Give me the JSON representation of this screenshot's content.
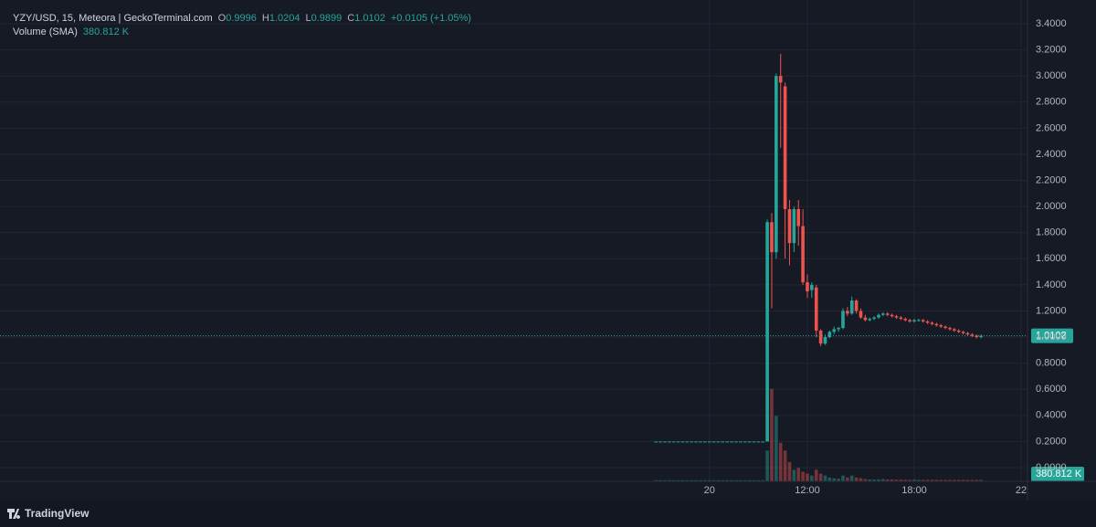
{
  "chart_data": {
    "type": "candlestick",
    "title": "YZY/USD, 15, Meteora | GeckoTerminal.com",
    "ohlc_labels": [
      "O",
      "H",
      "L",
      "C"
    ],
    "change_label": "+0.0105 (+1.05%)",
    "volume_title": "Volume (SMA)",
    "volume_label": "380.812 K",
    "brand": "TradingView",
    "up_color": "#26a69a",
    "down_color": "#ef5350",
    "grid": true,
    "x": [
      3.5,
      3.75,
      4,
      4.25,
      4.5,
      4.75,
      5,
      5.25,
      5.5,
      5.75,
      6,
      6.25,
      6.5,
      6.75,
      7,
      7.25,
      7.5,
      7.75,
      8,
      8.25,
      8.5,
      8.75,
      9,
      9.25,
      9.5,
      9.75,
      10,
      10.25,
      10.5,
      10.75,
      11,
      11.25,
      11.5,
      11.75,
      12,
      12.25,
      12.5,
      12.75,
      13,
      13.25,
      13.5,
      13.75,
      14,
      14.25,
      14.5,
      14.75,
      15,
      15.25,
      15.5,
      15.75,
      16,
      16.25,
      16.5,
      16.75,
      17,
      17.25,
      17.5,
      17.75,
      18,
      18.25,
      18.5,
      18.75,
      19,
      19.25,
      19.5,
      19.75,
      20,
      20.25,
      20.5,
      20.75,
      21,
      21.25,
      21.5,
      21.75
    ],
    "open": [
      0.2,
      0.2,
      0.2,
      0.2,
      0.2,
      0.2,
      0.2,
      0.2,
      0.2,
      0.2,
      0.2,
      0.2,
      0.2,
      0.2,
      0.2,
      0.2,
      0.2,
      0.2,
      0.2,
      0.2,
      0.2,
      0.2,
      0.2,
      0.2,
      0.2,
      0.2,
      1.88,
      1.65,
      3.0,
      2.92,
      1.98,
      1.72,
      1.98,
      1.85,
      1.42,
      1.36,
      1.38,
      1.05,
      0.95,
      1.0,
      1.04,
      1.06,
      1.07,
      1.2,
      1.18,
      1.28,
      1.2,
      1.15,
      1.13,
      1.14,
      1.15,
      1.17,
      1.18,
      1.17,
      1.16,
      1.15,
      1.14,
      1.13,
      1.12,
      1.13,
      1.13,
      1.12,
      1.11,
      1.1,
      1.09,
      1.08,
      1.07,
      1.06,
      1.05,
      1.04,
      1.03,
      1.02,
      1.01,
      0.9996
    ],
    "high": [
      0.2,
      0.2,
      0.2,
      0.2,
      0.2,
      0.2,
      0.2,
      0.2,
      0.2,
      0.2,
      0.2,
      0.2,
      0.2,
      0.2,
      0.2,
      0.2,
      0.2,
      0.2,
      0.2,
      0.2,
      0.2,
      0.2,
      0.2,
      0.2,
      0.2,
      1.9,
      1.95,
      3.02,
      3.17,
      2.95,
      2.05,
      2.0,
      2.05,
      1.98,
      1.48,
      1.42,
      1.4,
      1.06,
      1.02,
      1.05,
      1.08,
      1.08,
      1.22,
      1.23,
      1.31,
      1.29,
      1.22,
      1.17,
      1.15,
      1.16,
      1.18,
      1.19,
      1.19,
      1.18,
      1.17,
      1.16,
      1.15,
      1.14,
      1.14,
      1.14,
      1.14,
      1.13,
      1.12,
      1.11,
      1.1,
      1.09,
      1.08,
      1.07,
      1.06,
      1.05,
      1.04,
      1.03,
      1.02,
      1.0204
    ],
    "low": [
      0.2,
      0.2,
      0.2,
      0.2,
      0.2,
      0.2,
      0.2,
      0.2,
      0.2,
      0.2,
      0.2,
      0.2,
      0.2,
      0.2,
      0.2,
      0.2,
      0.2,
      0.2,
      0.2,
      0.2,
      0.2,
      0.2,
      0.2,
      0.2,
      0.2,
      0.2,
      1.22,
      1.6,
      2.45,
      1.6,
      1.55,
      1.65,
      1.7,
      1.4,
      1.3,
      1.3,
      1.0,
      0.93,
      0.94,
      0.99,
      1.02,
      1.04,
      1.06,
      1.16,
      1.17,
      1.18,
      1.14,
      1.12,
      1.12,
      1.13,
      1.14,
      1.16,
      1.16,
      1.15,
      1.14,
      1.13,
      1.12,
      1.11,
      1.11,
      1.12,
      1.11,
      1.1,
      1.09,
      1.08,
      1.07,
      1.06,
      1.05,
      1.04,
      1.03,
      1.02,
      1.01,
      1.0,
      0.99,
      0.9899
    ],
    "close": [
      0.2,
      0.2,
      0.2,
      0.2,
      0.2,
      0.2,
      0.2,
      0.2,
      0.2,
      0.2,
      0.2,
      0.2,
      0.2,
      0.2,
      0.2,
      0.2,
      0.2,
      0.2,
      0.2,
      0.2,
      0.2,
      0.2,
      0.2,
      0.2,
      0.2,
      1.88,
      1.65,
      3.0,
      2.95,
      1.98,
      1.72,
      1.98,
      1.85,
      1.42,
      1.35,
      1.4,
      1.05,
      0.95,
      1.0,
      1.04,
      1.06,
      1.07,
      1.2,
      1.18,
      1.28,
      1.2,
      1.15,
      1.13,
      1.14,
      1.15,
      1.17,
      1.18,
      1.17,
      1.16,
      1.15,
      1.14,
      1.13,
      1.12,
      1.13,
      1.13,
      1.12,
      1.11,
      1.1,
      1.09,
      1.08,
      1.07,
      1.06,
      1.05,
      1.04,
      1.03,
      1.02,
      1.01,
      1.0,
      1.0102
    ],
    "volume": [
      300000,
      300000,
      300000,
      300000,
      300000,
      300000,
      300000,
      300000,
      300000,
      300000,
      300000,
      300000,
      300000,
      300000,
      300000,
      300000,
      300000,
      300000,
      300000,
      300000,
      300000,
      300000,
      300000,
      300000,
      300000,
      8000000,
      24000000,
      17000000,
      10000000,
      8000000,
      5000000,
      3000000,
      3500000,
      2500000,
      2000000,
      1500000,
      3000000,
      2000000,
      1500000,
      1000000,
      800000,
      700000,
      1500000,
      1000000,
      1500000,
      1000000,
      800000,
      600000,
      500000,
      500000,
      500000,
      600000,
      500000,
      500000,
      450000,
      450000,
      400000,
      400000,
      450000,
      400000,
      400000,
      400000,
      400000,
      400000,
      380000,
      380000,
      380000,
      380000,
      380000,
      380000,
      380000,
      380000,
      380000,
      380812
    ],
    "xlim": [
      -33.33,
      24.36
    ],
    "xticks": [
      {
        "value": 6.5,
        "label": "20"
      },
      {
        "value": 12,
        "label": "12:00"
      },
      {
        "value": 18,
        "label": "18:00"
      },
      {
        "value": 24,
        "label": "22"
      }
    ],
    "ylim": [
      -0.105,
      3.582
    ],
    "yticks": [
      {
        "value": 0,
        "label": "0.0000"
      },
      {
        "value": 0.2,
        "label": "0.2000"
      },
      {
        "value": 0.4,
        "label": "0.4000"
      },
      {
        "value": 0.6,
        "label": "0.6000"
      },
      {
        "value": 0.8,
        "label": "0.8000"
      },
      {
        "value": 1.0,
        "label": "1.0000"
      },
      {
        "value": 1.2,
        "label": "1.2000"
      },
      {
        "value": 1.4,
        "label": "1.4000"
      },
      {
        "value": 1.6,
        "label": "1.6000"
      },
      {
        "value": 1.8,
        "label": "1.8000"
      },
      {
        "value": 2.0,
        "label": "2.0000"
      },
      {
        "value": 2.2,
        "label": "2.2000"
      },
      {
        "value": 2.4,
        "label": "2.4000"
      },
      {
        "value": 2.6,
        "label": "2.6000"
      },
      {
        "value": 2.8,
        "label": "2.8000"
      },
      {
        "value": 3.0,
        "label": "3.0000"
      },
      {
        "value": 3.2,
        "label": "3.2000"
      },
      {
        "value": 3.4,
        "label": "3.4000"
      }
    ],
    "y2lim": [
      0,
      125000000
    ]
  }
}
